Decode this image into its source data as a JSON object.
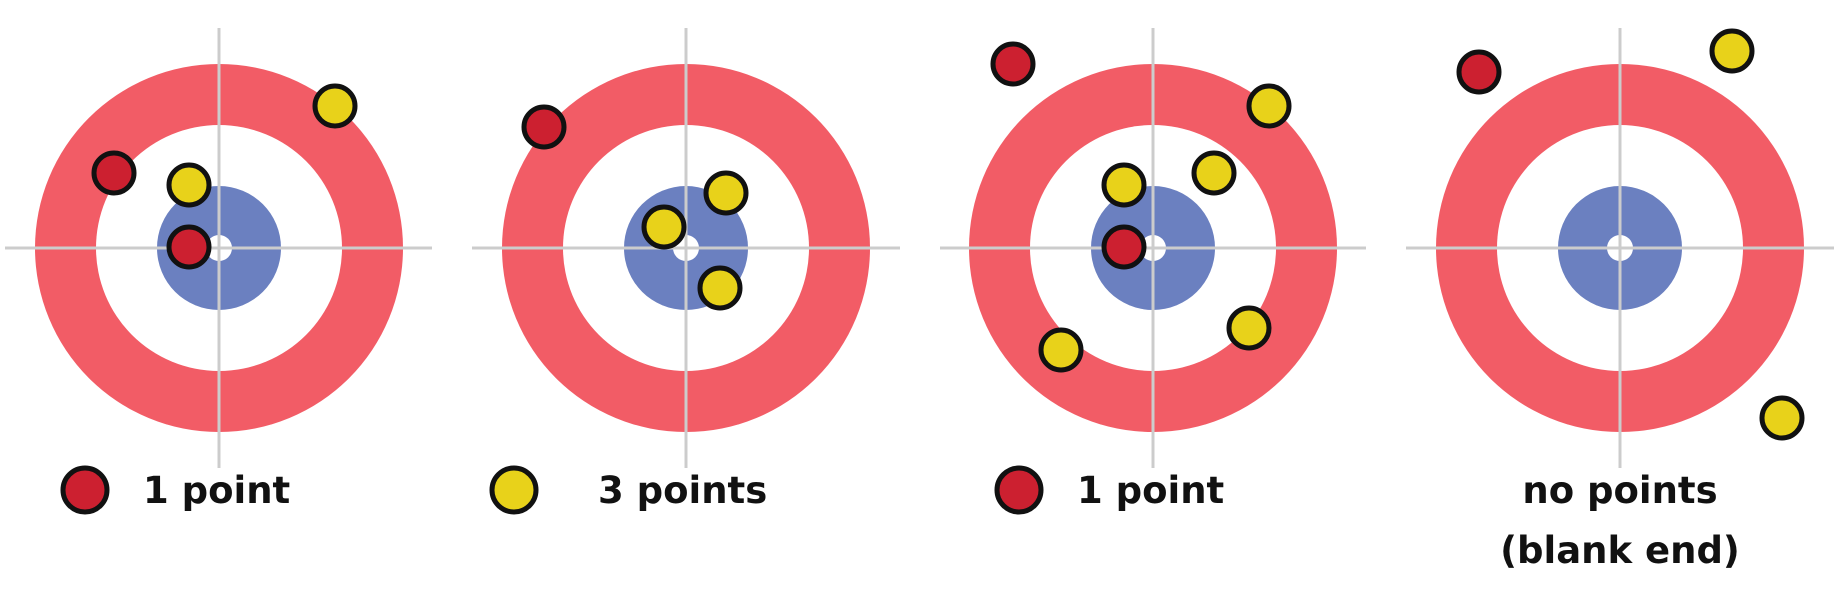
{
  "colors": {
    "red_ring": "#f25c66",
    "blue_button": "#6b80c0",
    "crosshair": "#cccccc",
    "red_stone": "#cc2030",
    "yellow_stone": "#e8d21a",
    "stone_outline": "#111111"
  },
  "panels": [
    {
      "caption_lines": [
        "1 point"
      ],
      "caption_stone": "red",
      "red_stones": 2,
      "yellow_stones": 2
    },
    {
      "caption_lines": [
        "3 points"
      ],
      "caption_stone": "yellow",
      "red_stones": 1,
      "yellow_stones": 3
    },
    {
      "caption_lines": [
        "1 point"
      ],
      "caption_stone": "red",
      "red_stones": 2,
      "yellow_stones": 5
    },
    {
      "caption_lines": [
        "no points",
        "(blank end)"
      ],
      "caption_stone": "none",
      "red_stones": 1,
      "yellow_stones": 2
    }
  ]
}
